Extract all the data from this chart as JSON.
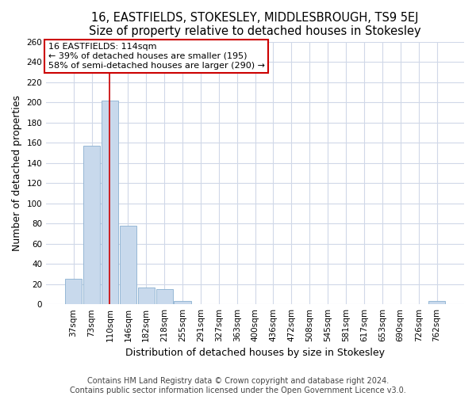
{
  "title": "16, EASTFIELDS, STOKESLEY, MIDDLESBROUGH, TS9 5EJ",
  "subtitle": "Size of property relative to detached houses in Stokesley",
  "xlabel": "Distribution of detached houses by size in Stokesley",
  "ylabel": "Number of detached properties",
  "bar_labels": [
    "37sqm",
    "73sqm",
    "110sqm",
    "146sqm",
    "182sqm",
    "218sqm",
    "255sqm",
    "291sqm",
    "327sqm",
    "363sqm",
    "400sqm",
    "436sqm",
    "472sqm",
    "508sqm",
    "545sqm",
    "581sqm",
    "617sqm",
    "653sqm",
    "690sqm",
    "726sqm",
    "762sqm"
  ],
  "bar_values": [
    25,
    157,
    202,
    78,
    17,
    15,
    3,
    0,
    0,
    0,
    0,
    0,
    0,
    0,
    0,
    0,
    0,
    0,
    0,
    0,
    3
  ],
  "bar_color": "#c8d9ec",
  "bar_edge_color": "#8ab0d0",
  "annotation_text_line1": "16 EASTFIELDS: 114sqm",
  "annotation_text_line2": "← 39% of detached houses are smaller (195)",
  "annotation_text_line3": "58% of semi-detached houses are larger (290) →",
  "annotation_box_color": "#ffffff",
  "annotation_border_color": "#cc0000",
  "vline_color": "#cc0000",
  "vline_x_index": 2,
  "ylim": [
    0,
    260
  ],
  "yticks": [
    0,
    20,
    40,
    60,
    80,
    100,
    120,
    140,
    160,
    180,
    200,
    220,
    240,
    260
  ],
  "footer_text": "Contains HM Land Registry data © Crown copyright and database right 2024.\nContains public sector information licensed under the Open Government Licence v3.0.",
  "bg_color": "#ffffff",
  "plot_bg_color": "#ffffff",
  "grid_color": "#d0d8e8",
  "title_fontsize": 10.5,
  "axis_label_fontsize": 9,
  "tick_fontsize": 7.5,
  "footer_fontsize": 7
}
